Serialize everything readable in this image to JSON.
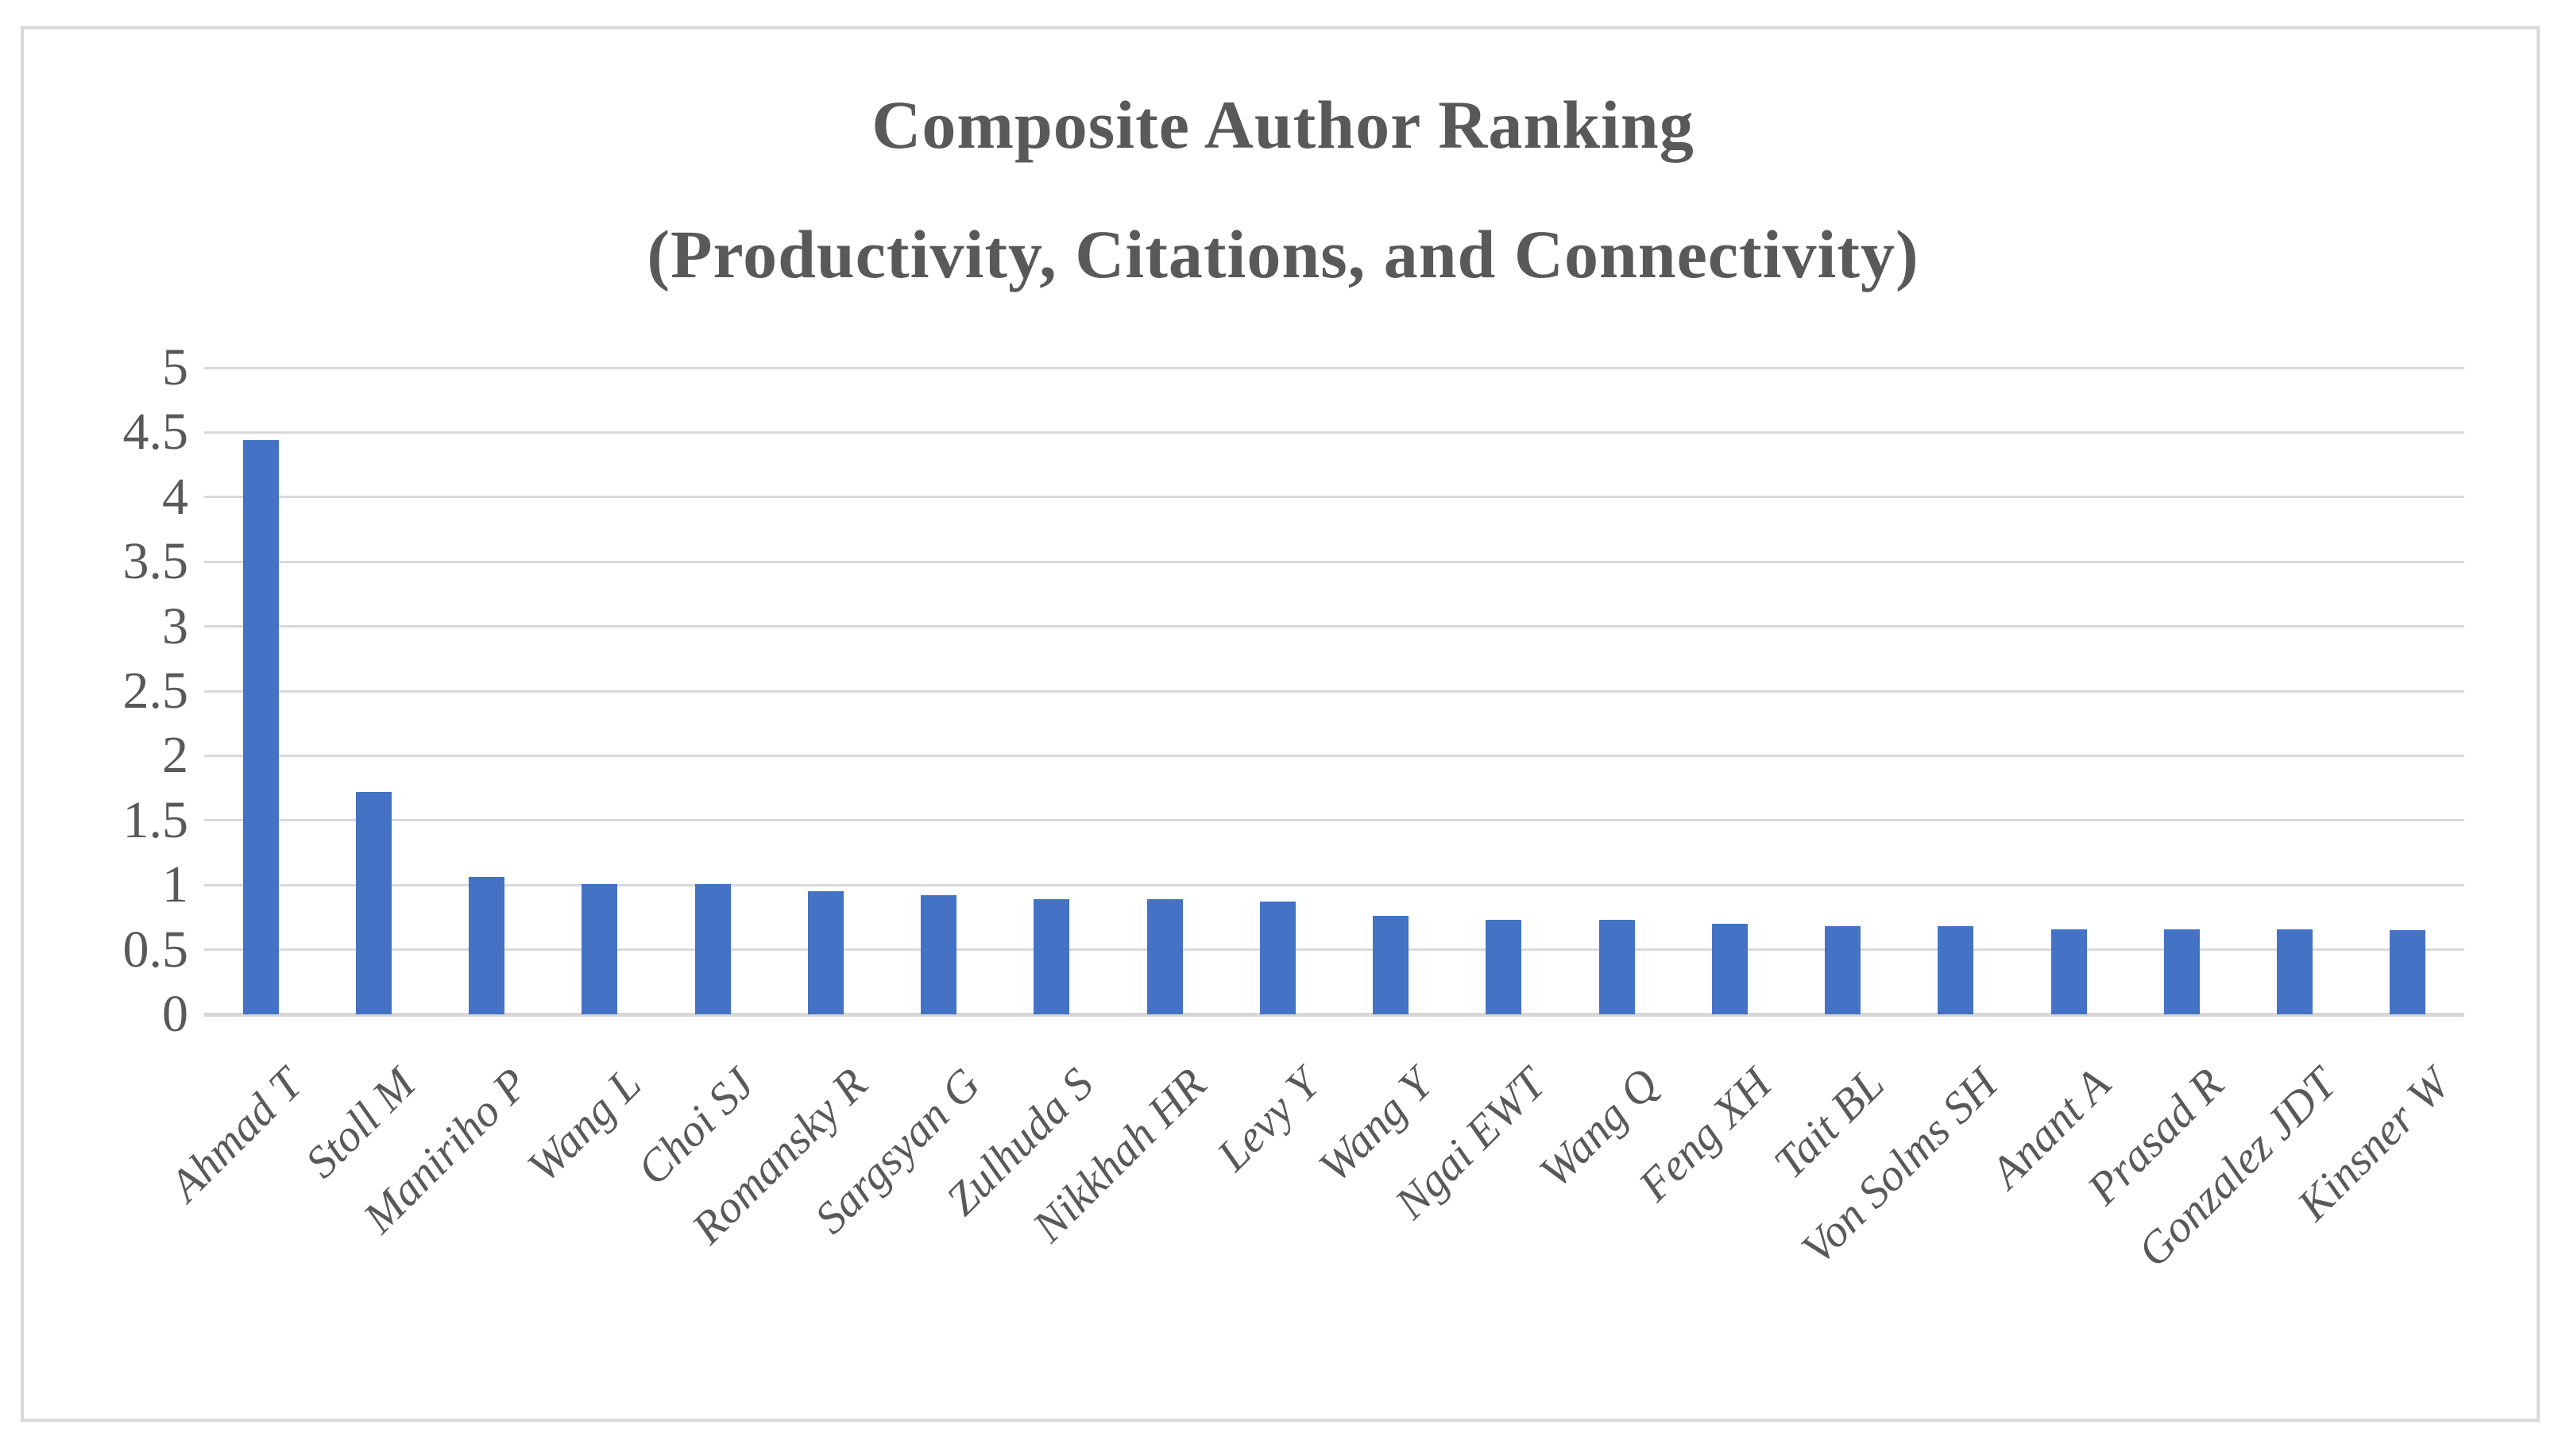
{
  "frame": {
    "border_color": "#d9d9d9",
    "background": "#ffffff"
  },
  "chart_data": {
    "type": "bar",
    "title": "Composite Author Ranking (Productivity, Citations, and Connectivity)",
    "title_line1": "Composite Author Ranking",
    "title_line2": "(Productivity, Citations, and Connectivity)",
    "categories": [
      "Ahmad T",
      "Stoll M",
      "Maniriho P",
      "Wang L",
      "Choi SJ",
      "Romansky R",
      "Sargsyan G",
      "Zulhuda S",
      "Nikkhah HR",
      "Levy Y",
      "Wang Y",
      "Ngai EWT",
      "Wang Q",
      "Feng XH",
      "Tait BL",
      "Von Solms SH",
      "Anant A",
      "Prasad R",
      "Gonzalez JDT",
      "Kinsner W"
    ],
    "values": [
      4.44,
      1.72,
      1.06,
      1.01,
      1.01,
      0.95,
      0.92,
      0.89,
      0.89,
      0.87,
      0.76,
      0.73,
      0.73,
      0.7,
      0.68,
      0.68,
      0.66,
      0.66,
      0.66,
      0.65
    ],
    "series_color": "#4472C4",
    "xlabel": "",
    "ylabel": "",
    "ylim": [
      0,
      5
    ],
    "y_ticks": [
      0,
      0.5,
      1,
      1.5,
      2,
      2.5,
      3,
      3.5,
      4,
      4.5,
      5
    ],
    "y_tick_labels": [
      "0",
      "0.5",
      "1",
      "1.5",
      "2",
      "2.5",
      "3",
      "3.5",
      "4",
      "4.5",
      "5"
    ],
    "grid": true,
    "gridline_color": "#d9d9d9",
    "text_color": "#595959",
    "legend_position": "none",
    "x_label_rotation_deg": 45
  }
}
